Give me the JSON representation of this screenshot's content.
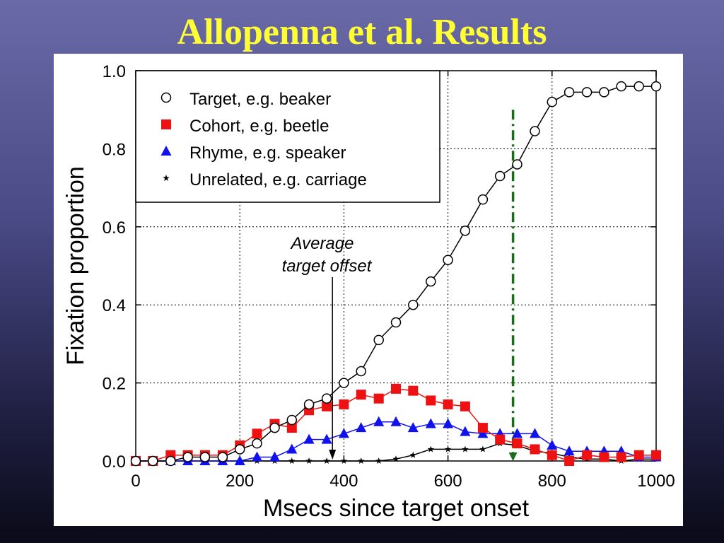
{
  "slide": {
    "title": "Allopenna et al. Results"
  },
  "chart_data": {
    "type": "line",
    "xlabel": "Msecs since target onset",
    "ylabel": "Fixation proportion",
    "xlim": [
      0,
      1000
    ],
    "ylim": [
      0,
      1.0
    ],
    "x_ticks": [
      0,
      200,
      400,
      600,
      800,
      1000
    ],
    "y_ticks": [
      "0.0",
      "0.2",
      "0.4",
      "0.6",
      "0.8",
      "1.0"
    ],
    "grid": true,
    "legend_position": "top-left",
    "x": [
      0,
      33,
      67,
      100,
      133,
      167,
      200,
      233,
      267,
      300,
      333,
      367,
      400,
      433,
      467,
      500,
      533,
      567,
      600,
      633,
      667,
      700,
      733,
      767,
      800,
      833,
      867,
      900,
      933,
      967,
      1000
    ],
    "series": [
      {
        "name": "Target, e.g. beaker",
        "marker": "circle",
        "color": "#000000",
        "values": [
          0.0,
          0.0,
          0.0,
          0.01,
          0.01,
          0.01,
          0.03,
          0.045,
          0.085,
          0.105,
          0.145,
          0.16,
          0.2,
          0.23,
          0.31,
          0.355,
          0.4,
          0.46,
          0.515,
          0.59,
          0.67,
          0.73,
          0.76,
          0.845,
          0.92,
          0.945,
          0.945,
          0.945,
          0.96,
          0.96,
          0.96
        ]
      },
      {
        "name": "Cohort, e.g. beetle",
        "marker": "square",
        "color": "#ee1111",
        "values": [
          0.0,
          0.0,
          0.015,
          0.015,
          0.015,
          0.015,
          0.04,
          0.07,
          0.095,
          0.085,
          0.13,
          0.14,
          0.145,
          0.17,
          0.16,
          0.185,
          0.18,
          0.155,
          0.145,
          0.14,
          0.085,
          0.055,
          0.045,
          0.03,
          0.015,
          0.0,
          0.015,
          0.01,
          0.01,
          0.015,
          0.015
        ]
      },
      {
        "name": "Rhyme, e.g. speaker",
        "marker": "triangle",
        "color": "#1111ee",
        "values": [
          0.0,
          0.0,
          0.0,
          0.0,
          0.0,
          0.0,
          0.0,
          0.01,
          0.01,
          0.03,
          0.055,
          0.055,
          0.07,
          0.085,
          0.1,
          0.1,
          0.085,
          0.095,
          0.095,
          0.075,
          0.07,
          0.07,
          0.07,
          0.07,
          0.04,
          0.025,
          0.025,
          0.025,
          0.025,
          0.01,
          0.01
        ]
      },
      {
        "name": "Unrelated, e.g. carriage",
        "marker": "star",
        "color": "#000000",
        "values": [
          0.0,
          0.0,
          0.0,
          0.0,
          0.0,
          0.0,
          0.0,
          0.0,
          0.0,
          0.0,
          0.0,
          0.0,
          0.0,
          0.0,
          0.0,
          0.005,
          0.015,
          0.03,
          0.03,
          0.03,
          0.03,
          0.045,
          0.04,
          0.025,
          0.02,
          0.01,
          0.005,
          0.005,
          0.0,
          0.005,
          0.005
        ]
      }
    ],
    "annotations": [
      {
        "text_lines": [
          "Average",
          "target offset"
        ],
        "arrow_x": 378,
        "arrow_to_y": 0.0
      }
    ],
    "reference_line": {
      "x": 725,
      "style": "dash-dot",
      "color": "#1a6b1a",
      "from_y": 0.9,
      "to_y": 0.0
    }
  }
}
